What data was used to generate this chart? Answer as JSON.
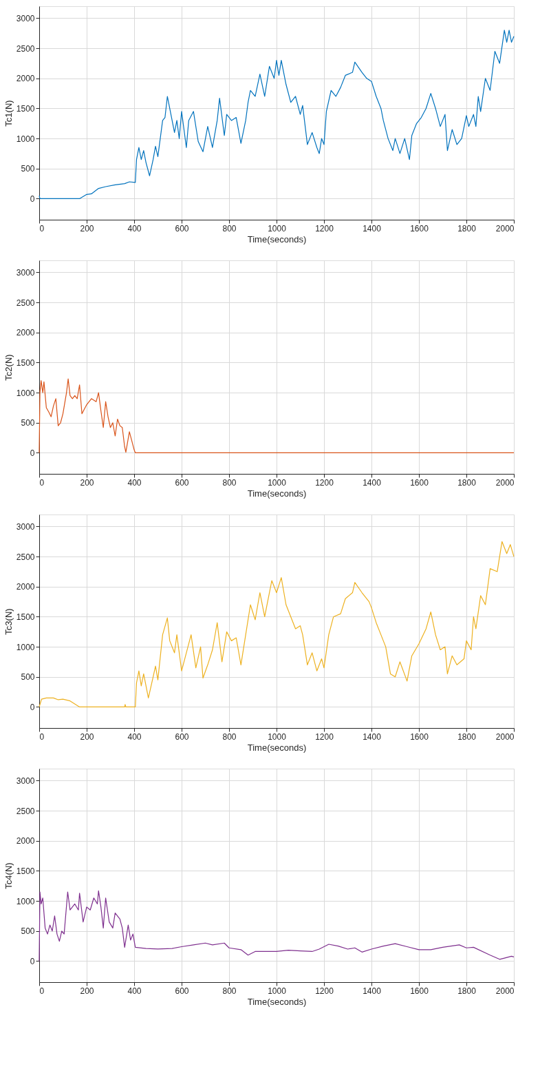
{
  "chart_data": [
    {
      "type": "line",
      "xlabel": "Time(seconds)",
      "ylabel": "Tc1(N)",
      "color": "#0072bd",
      "xlim": [
        0,
        2000
      ],
      "xticks": [
        0,
        200,
        400,
        600,
        800,
        1000,
        1200,
        1400,
        1600,
        1800,
        2000
      ],
      "ylim": [
        -350,
        3200
      ],
      "yticks": [
        0,
        500,
        1000,
        1500,
        2000,
        2500,
        3000
      ],
      "grid": true,
      "x": [
        0,
        3,
        170,
        200,
        220,
        250,
        280,
        320,
        360,
        380,
        405,
        410,
        420,
        430,
        440,
        450,
        465,
        480,
        490,
        500,
        520,
        530,
        540,
        550,
        570,
        580,
        590,
        600,
        620,
        630,
        650,
        670,
        690,
        710,
        730,
        750,
        760,
        780,
        790,
        810,
        830,
        850,
        870,
        880,
        890,
        910,
        930,
        950,
        970,
        990,
        1000,
        1010,
        1020,
        1040,
        1060,
        1080,
        1100,
        1110,
        1130,
        1150,
        1170,
        1180,
        1190,
        1200,
        1210,
        1230,
        1250,
        1270,
        1290,
        1320,
        1330,
        1360,
        1380,
        1400,
        1420,
        1440,
        1450,
        1470,
        1490,
        1500,
        1520,
        1540,
        1560,
        1570,
        1590,
        1610,
        1630,
        1650,
        1670,
        1690,
        1710,
        1720,
        1740,
        1760,
        1780,
        1800,
        1810,
        1830,
        1840,
        1850,
        1860,
        1880,
        1900,
        1920,
        1940,
        1960,
        1970,
        1980,
        1990,
        2000
      ],
      "values": [
        50,
        0,
        0,
        70,
        80,
        170,
        200,
        230,
        250,
        280,
        270,
        650,
        850,
        650,
        800,
        600,
        380,
        650,
        870,
        700,
        1300,
        1350,
        1700,
        1500,
        1100,
        1300,
        1000,
        1450,
        850,
        1300,
        1450,
        950,
        780,
        1200,
        850,
        1300,
        1670,
        1050,
        1400,
        1300,
        1350,
        920,
        1300,
        1600,
        1800,
        1700,
        2070,
        1700,
        2200,
        2000,
        2300,
        2050,
        2300,
        1900,
        1600,
        1700,
        1400,
        1550,
        900,
        1100,
        850,
        750,
        1000,
        900,
        1450,
        1800,
        1700,
        1850,
        2050,
        2100,
        2270,
        2100,
        2000,
        1950,
        1700,
        1500,
        1300,
        1000,
        800,
        1000,
        750,
        1000,
        650,
        1050,
        1250,
        1350,
        1500,
        1750,
        1500,
        1200,
        1400,
        800,
        1150,
        900,
        1000,
        1380,
        1200,
        1400,
        1200,
        1700,
        1450,
        2000,
        1800,
        2450,
        2250,
        2800,
        2600,
        2800,
        2600,
        2700
      ]
    },
    {
      "type": "line",
      "xlabel": "Time(seconds)",
      "ylabel": "Tc2(N)",
      "color": "#d95319",
      "xlim": [
        0,
        2000
      ],
      "xticks": [
        0,
        200,
        400,
        600,
        800,
        1000,
        1200,
        1400,
        1600,
        1800,
        2000
      ],
      "ylim": [
        -350,
        3200
      ],
      "yticks": [
        0,
        500,
        1000,
        1500,
        2000,
        2500,
        3000
      ],
      "grid": true,
      "x": [
        0,
        3,
        8,
        15,
        20,
        30,
        40,
        50,
        60,
        70,
        80,
        90,
        100,
        115,
        122,
        130,
        140,
        150,
        160,
        170,
        180,
        200,
        220,
        240,
        250,
        260,
        270,
        280,
        290,
        300,
        310,
        320,
        330,
        340,
        350,
        360,
        365,
        380,
        390,
        400,
        405,
        2000
      ],
      "values": [
        0,
        1000,
        1200,
        1000,
        1180,
        750,
        680,
        600,
        780,
        900,
        450,
        500,
        650,
        1000,
        1230,
        950,
        900,
        950,
        900,
        1130,
        650,
        800,
        900,
        850,
        1000,
        700,
        420,
        850,
        600,
        420,
        500,
        280,
        560,
        450,
        420,
        100,
        10,
        350,
        200,
        50,
        0,
        0
      ]
    },
    {
      "type": "line",
      "xlabel": "Time(seconds)",
      "ylabel": "Tc3(N)",
      "color": "#edb120",
      "xlim": [
        0,
        2000
      ],
      "xticks": [
        0,
        200,
        400,
        600,
        800,
        1000,
        1200,
        1400,
        1600,
        1800,
        2000
      ],
      "ylim": [
        -350,
        3200
      ],
      "yticks": [
        0,
        500,
        1000,
        1500,
        2000,
        2500,
        3000
      ],
      "grid": true,
      "x": [
        0,
        10,
        30,
        60,
        80,
        100,
        130,
        170,
        360,
        362,
        365,
        405,
        410,
        420,
        430,
        440,
        460,
        480,
        490,
        500,
        520,
        540,
        550,
        570,
        580,
        600,
        620,
        640,
        660,
        680,
        690,
        710,
        730,
        750,
        770,
        790,
        810,
        830,
        850,
        870,
        890,
        910,
        930,
        950,
        980,
        1000,
        1020,
        1040,
        1060,
        1080,
        1100,
        1110,
        1130,
        1150,
        1170,
        1190,
        1200,
        1220,
        1240,
        1270,
        1290,
        1320,
        1330,
        1360,
        1390,
        1400,
        1420,
        1440,
        1460,
        1480,
        1500,
        1520,
        1550,
        1570,
        1600,
        1630,
        1650,
        1670,
        1690,
        1710,
        1720,
        1740,
        1760,
        1790,
        1800,
        1820,
        1830,
        1840,
        1860,
        1880,
        1900,
        1930,
        1950,
        1970,
        1985,
        2000
      ],
      "values": [
        0,
        130,
        150,
        150,
        120,
        130,
        100,
        0,
        0,
        40,
        0,
        0,
        400,
        600,
        350,
        550,
        150,
        500,
        680,
        450,
        1200,
        1480,
        1100,
        900,
        1200,
        600,
        900,
        1200,
        650,
        1000,
        480,
        700,
        950,
        1400,
        750,
        1250,
        1100,
        1150,
        700,
        1200,
        1700,
        1450,
        1900,
        1500,
        2100,
        1900,
        2150,
        1700,
        1500,
        1300,
        1350,
        1200,
        700,
        900,
        600,
        800,
        650,
        1200,
        1500,
        1550,
        1800,
        1900,
        2070,
        1900,
        1750,
        1650,
        1400,
        1200,
        1000,
        550,
        500,
        750,
        430,
        850,
        1050,
        1300,
        1580,
        1200,
        950,
        1000,
        550,
        850,
        700,
        800,
        1100,
        950,
        1500,
        1300,
        1850,
        1700,
        2300,
        2250,
        2750,
        2550,
        2700,
        2500
      ]
    },
    {
      "type": "line",
      "xlabel": "Time(seconds)",
      "ylabel": "Tc4(N)",
      "color": "#7e2f8e",
      "xlim": [
        0,
        2000
      ],
      "xticks": [
        0,
        200,
        400,
        600,
        800,
        1000,
        1200,
        1400,
        1600,
        1800,
        2000
      ],
      "ylim": [
        -350,
        3200
      ],
      "yticks": [
        0,
        500,
        1000,
        1500,
        2000,
        2500,
        3000
      ],
      "grid": true,
      "x": [
        0,
        3,
        8,
        15,
        25,
        35,
        45,
        55,
        65,
        75,
        85,
        95,
        105,
        120,
        130,
        150,
        165,
        170,
        185,
        200,
        215,
        230,
        245,
        250,
        260,
        270,
        280,
        295,
        310,
        320,
        340,
        350,
        360,
        375,
        385,
        395,
        405,
        450,
        500,
        560,
        600,
        650,
        700,
        730,
        780,
        800,
        850,
        880,
        910,
        1000,
        1050,
        1100,
        1150,
        1180,
        1220,
        1260,
        1300,
        1330,
        1360,
        1400,
        1450,
        1500,
        1550,
        1600,
        1650,
        1700,
        1770,
        1800,
        1830,
        1900,
        1940,
        1960,
        1990,
        2000
      ],
      "values": [
        0,
        1150,
        950,
        1050,
        550,
        450,
        600,
        500,
        750,
        450,
        330,
        500,
        450,
        1150,
        850,
        950,
        850,
        1130,
        650,
        900,
        850,
        1050,
        950,
        1170,
        900,
        550,
        1050,
        650,
        550,
        800,
        700,
        550,
        230,
        600,
        350,
        450,
        230,
        210,
        200,
        210,
        240,
        270,
        300,
        270,
        300,
        220,
        190,
        100,
        160,
        160,
        180,
        170,
        160,
        200,
        280,
        250,
        200,
        220,
        150,
        200,
        250,
        290,
        240,
        190,
        190,
        230,
        270,
        220,
        230,
        100,
        30,
        50,
        80,
        70
      ]
    }
  ]
}
